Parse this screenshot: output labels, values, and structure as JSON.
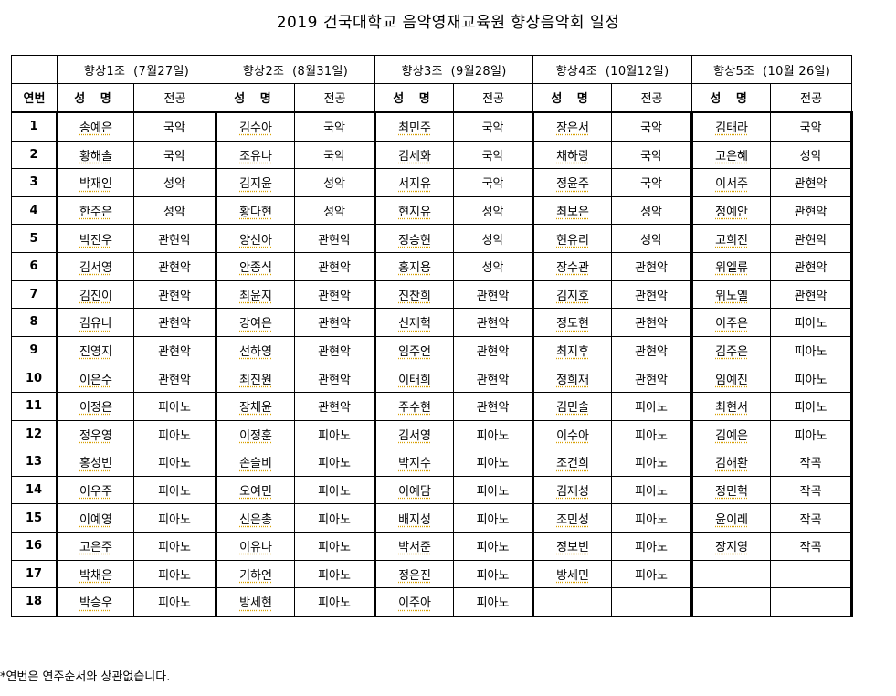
{
  "title": "2019 건국대학교 음악영재교육원 향상음악회 일정",
  "table": {
    "num_header": "연번",
    "name_header": "성 명",
    "major_header": "전공",
    "groups": [
      {
        "label": "향상1조  (7월27일)"
      },
      {
        "label": "향상2조  (8월31일)"
      },
      {
        "label": "향상3조  (9월28일)"
      },
      {
        "label": "향상4조  (10월12일)"
      },
      {
        "label": "향상5조  (10월 26일)"
      }
    ],
    "rows": [
      {
        "num": "1",
        "cells": [
          {
            "n": "송예은",
            "m": "국악"
          },
          {
            "n": "김수아",
            "m": "국악"
          },
          {
            "n": "최민주",
            "m": "국악"
          },
          {
            "n": "장은서",
            "m": "국악"
          },
          {
            "n": "김태라",
            "m": "국악"
          }
        ]
      },
      {
        "num": "2",
        "cells": [
          {
            "n": "황해솔",
            "m": "국악"
          },
          {
            "n": "조유나",
            "m": "국악"
          },
          {
            "n": "김세화",
            "m": "국악"
          },
          {
            "n": "채하랑",
            "m": "국악"
          },
          {
            "n": "고은혜",
            "m": "성악"
          }
        ]
      },
      {
        "num": "3",
        "cells": [
          {
            "n": "박재인",
            "m": "성악"
          },
          {
            "n": "김지윤",
            "m": "성악"
          },
          {
            "n": "서지유",
            "m": "국악"
          },
          {
            "n": "정윤주",
            "m": "국악"
          },
          {
            "n": "이서주",
            "m": "관현악"
          }
        ]
      },
      {
        "num": "4",
        "cells": [
          {
            "n": "한주은",
            "m": "성악"
          },
          {
            "n": "황다현",
            "m": "성악"
          },
          {
            "n": "현지유",
            "m": "성악"
          },
          {
            "n": "최보은",
            "m": "성악"
          },
          {
            "n": "정예안",
            "m": "관현악"
          }
        ]
      },
      {
        "num": "5",
        "cells": [
          {
            "n": "박진우",
            "m": "관현악"
          },
          {
            "n": "양선아",
            "m": "관현악"
          },
          {
            "n": "정승현",
            "m": "성악"
          },
          {
            "n": "현유리",
            "m": "성악"
          },
          {
            "n": "고희진",
            "m": "관현악"
          }
        ]
      },
      {
        "num": "6",
        "cells": [
          {
            "n": "김서영",
            "m": "관현악"
          },
          {
            "n": "안종식",
            "m": "관현악"
          },
          {
            "n": "홍지용",
            "m": "성악"
          },
          {
            "n": "장수관",
            "m": "관현악"
          },
          {
            "n": "위엘류",
            "m": "관현악"
          }
        ]
      },
      {
        "num": "7",
        "cells": [
          {
            "n": "김진이",
            "m": "관현악"
          },
          {
            "n": "최윤지",
            "m": "관현악"
          },
          {
            "n": "진찬희",
            "m": "관현악"
          },
          {
            "n": "김지호",
            "m": "관현악"
          },
          {
            "n": "위노엘",
            "m": "관현악"
          }
        ]
      },
      {
        "num": "8",
        "cells": [
          {
            "n": "김유나",
            "m": "관현악"
          },
          {
            "n": "강여은",
            "m": "관현악"
          },
          {
            "n": "신재혁",
            "m": "관현악"
          },
          {
            "n": "정도현",
            "m": "관현악"
          },
          {
            "n": "이주은",
            "m": "피아노"
          }
        ]
      },
      {
        "num": "9",
        "cells": [
          {
            "n": "진영지",
            "m": "관현악"
          },
          {
            "n": "선하영",
            "m": "관현악"
          },
          {
            "n": "임주언",
            "m": "관현악"
          },
          {
            "n": "최지후",
            "m": "관현악"
          },
          {
            "n": "김주은",
            "m": "피아노"
          }
        ]
      },
      {
        "num": "10",
        "cells": [
          {
            "n": "이은수",
            "m": "관현악"
          },
          {
            "n": "최진원",
            "m": "관현악"
          },
          {
            "n": "이태희",
            "m": "관현악"
          },
          {
            "n": "정희재",
            "m": "관현악"
          },
          {
            "n": "임예진",
            "m": "피아노"
          }
        ]
      },
      {
        "num": "11",
        "cells": [
          {
            "n": "이정은",
            "m": "피아노"
          },
          {
            "n": "장채윤",
            "m": "관현악"
          },
          {
            "n": "주수현",
            "m": "관현악"
          },
          {
            "n": "김민솔",
            "m": "피아노"
          },
          {
            "n": "최현서",
            "m": "피아노"
          }
        ]
      },
      {
        "num": "12",
        "cells": [
          {
            "n": "정우영",
            "m": "피아노"
          },
          {
            "n": "이정훈",
            "m": "피아노"
          },
          {
            "n": "김서영",
            "m": "피아노"
          },
          {
            "n": "이수아",
            "m": "피아노"
          },
          {
            "n": "김예은",
            "m": "피아노"
          }
        ]
      },
      {
        "num": "13",
        "cells": [
          {
            "n": "홍성빈",
            "m": "피아노"
          },
          {
            "n": "손슬비",
            "m": "피아노"
          },
          {
            "n": "박지수",
            "m": "피아노"
          },
          {
            "n": "조건희",
            "m": "피아노"
          },
          {
            "n": "김해환",
            "m": "작곡"
          }
        ]
      },
      {
        "num": "14",
        "cells": [
          {
            "n": "이우주",
            "m": "피아노"
          },
          {
            "n": "오여민",
            "m": "피아노"
          },
          {
            "n": "이예담",
            "m": "피아노"
          },
          {
            "n": "김재성",
            "m": "피아노"
          },
          {
            "n": "정민혁",
            "m": "작곡"
          }
        ]
      },
      {
        "num": "15",
        "cells": [
          {
            "n": "이예영",
            "m": "피아노"
          },
          {
            "n": "신은총",
            "m": "피아노"
          },
          {
            "n": "배지성",
            "m": "피아노"
          },
          {
            "n": "조민성",
            "m": "피아노"
          },
          {
            "n": "윤이레",
            "m": "작곡"
          }
        ]
      },
      {
        "num": "16",
        "cells": [
          {
            "n": "고은주",
            "m": "피아노"
          },
          {
            "n": "이유나",
            "m": "피아노"
          },
          {
            "n": "박서준",
            "m": "피아노"
          },
          {
            "n": "정보빈",
            "m": "피아노"
          },
          {
            "n": "장지영",
            "m": "작곡"
          }
        ]
      },
      {
        "num": "17",
        "cells": [
          {
            "n": "박채은",
            "m": "피아노"
          },
          {
            "n": "기하언",
            "m": "피아노"
          },
          {
            "n": "정은진",
            "m": "피아노"
          },
          {
            "n": "방세민",
            "m": "피아노"
          },
          {
            "n": "",
            "m": ""
          }
        ]
      },
      {
        "num": "18",
        "cells": [
          {
            "n": "박승우",
            "m": "피아노"
          },
          {
            "n": "방세현",
            "m": "피아노"
          },
          {
            "n": "이주아",
            "m": "피아노"
          },
          {
            "n": "",
            "m": ""
          },
          {
            "n": "",
            "m": ""
          }
        ]
      }
    ]
  },
  "footnote": "*연번은 연주순서와 상관없습니다."
}
